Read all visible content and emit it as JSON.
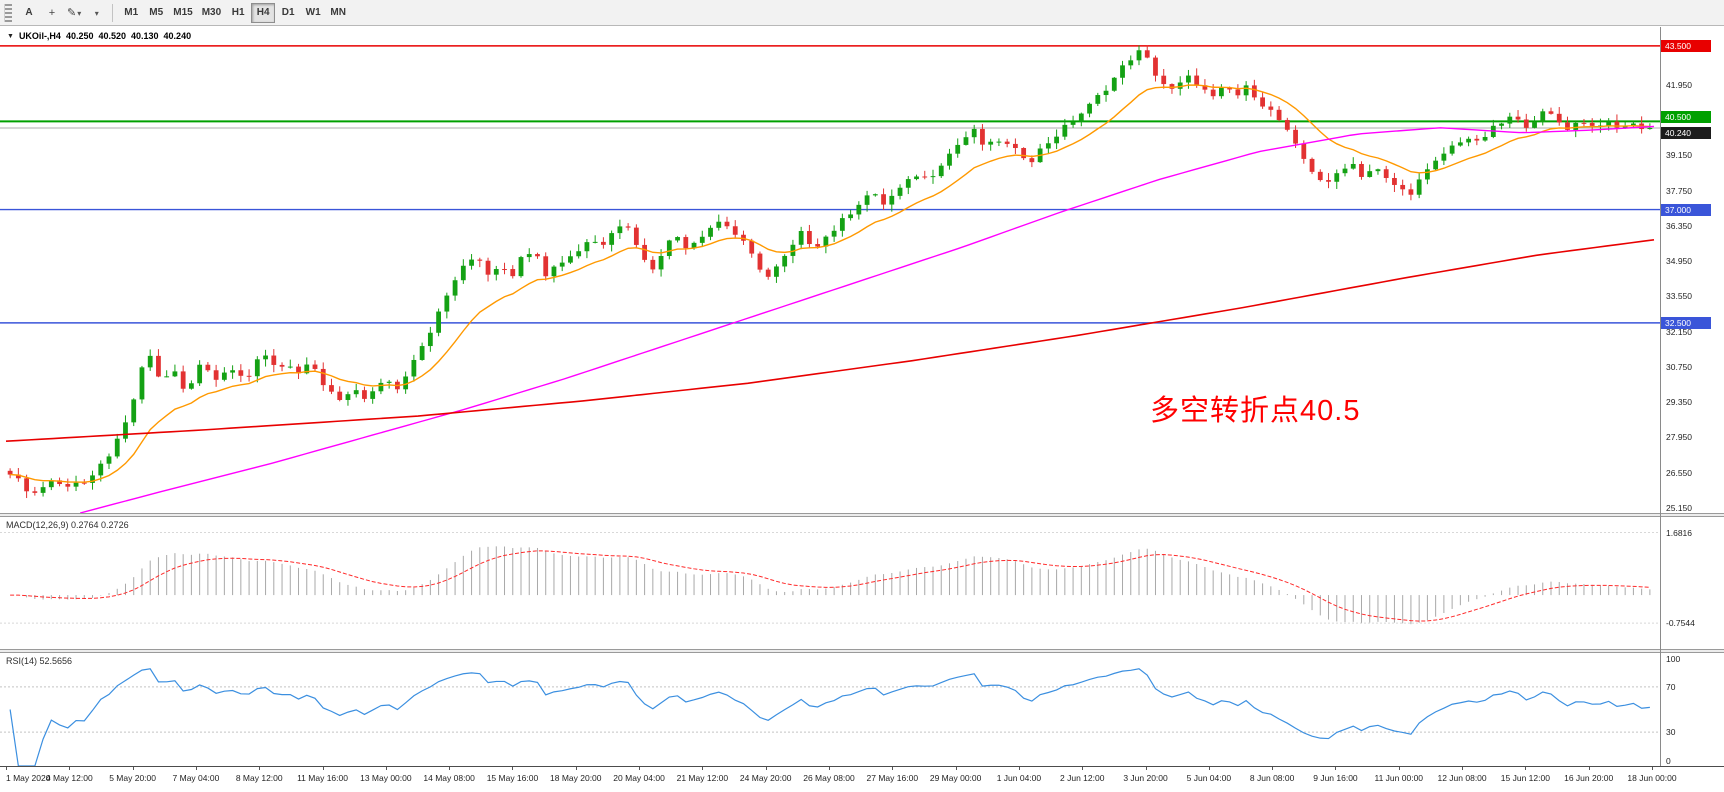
{
  "toolbar": {
    "text_tool_label": "A",
    "timeframes": [
      "M1",
      "M5",
      "M15",
      "M30",
      "H1",
      "H4",
      "D1",
      "W1",
      "MN"
    ],
    "active_timeframe": "H4"
  },
  "chart": {
    "symbol": "UKOil-,H4",
    "open": "40.250",
    "high": "40.520",
    "low": "40.130",
    "close": "40.240",
    "annotation": {
      "text": "多空转折点40.5",
      "color": "#ff0000"
    },
    "levels": [
      {
        "price": 43.5,
        "label": "43.500",
        "color": "#e80000"
      },
      {
        "price": 40.5,
        "label": "40.500",
        "color": "#00a000"
      },
      {
        "price": 37.0,
        "label": "37.000",
        "color": "#3a55d9"
      },
      {
        "price": 32.5,
        "label": "32.500",
        "color": "#3a55d9"
      }
    ],
    "current_price": {
      "price": 40.24,
      "label": "40.240",
      "color": "#1c1c1c"
    },
    "price_ticks": [
      "41.950",
      "39.150",
      "37.750",
      "36.350",
      "34.950",
      "33.550",
      "32.150",
      "30.750",
      "29.350",
      "27.950",
      "26.550",
      "25.150"
    ]
  },
  "macd": {
    "label": "MACD(12,26,9) 0.2764 0.2726",
    "axis_max": "1.6816",
    "axis_min": "-0.7544"
  },
  "rsi": {
    "label": "RSI(14) 52.5656",
    "period": 14,
    "axis_labels": [
      "100",
      "70",
      "30",
      "0"
    ],
    "levels": [
      70,
      30
    ]
  },
  "time_axis": [
    "1 May 2020",
    "4 May 12:00",
    "5 May 20:00",
    "7 May 04:00",
    "8 May 12:00",
    "11 May 16:00",
    "13 May 00:00",
    "14 May 08:00",
    "15 May 16:00",
    "18 May 20:00",
    "20 May 04:00",
    "21 May 12:00",
    "24 May 20:00",
    "26 May 08:00",
    "27 May 16:00",
    "29 May 00:00",
    "1 Jun 04:00",
    "2 Jun 12:00",
    "3 Jun 20:00",
    "5 Jun 04:00",
    "8 Jun 08:00",
    "9 Jun 16:00",
    "11 Jun 00:00",
    "12 Jun 08:00",
    "15 Jun 12:00",
    "16 Jun 20:00",
    "18 Jun 00:00"
  ],
  "chart_data": {
    "type": "candlestick",
    "symbol": "UKOil-",
    "timeframe": "H4",
    "price_view": {
      "max": 44.25,
      "min": 24.95
    },
    "num_candles": 200,
    "close_path": [
      [
        0.0,
        26.6
      ],
      [
        0.008,
        26.0
      ],
      [
        0.016,
        25.7
      ],
      [
        0.024,
        26.3
      ],
      [
        0.032,
        26.0
      ],
      [
        0.04,
        26.2
      ],
      [
        0.048,
        26.1
      ],
      [
        0.056,
        26.9
      ],
      [
        0.064,
        27.6
      ],
      [
        0.07,
        28.4
      ],
      [
        0.076,
        29.6
      ],
      [
        0.082,
        31.0
      ],
      [
        0.087,
        31.3
      ],
      [
        0.092,
        29.9
      ],
      [
        0.098,
        30.8
      ],
      [
        0.104,
        30.1
      ],
      [
        0.108,
        29.5
      ],
      [
        0.113,
        30.6
      ],
      [
        0.118,
        31.1
      ],
      [
        0.124,
        30.2
      ],
      [
        0.13,
        30.5
      ],
      [
        0.137,
        30.8
      ],
      [
        0.144,
        30.2
      ],
      [
        0.15,
        30.9
      ],
      [
        0.157,
        31.2
      ],
      [
        0.163,
        30.7
      ],
      [
        0.17,
        30.9
      ],
      [
        0.177,
        30.4
      ],
      [
        0.183,
        30.9
      ],
      [
        0.19,
        30.1
      ],
      [
        0.196,
        29.7
      ],
      [
        0.203,
        29.3
      ],
      [
        0.21,
        29.9
      ],
      [
        0.217,
        29.5
      ],
      [
        0.224,
        29.9
      ],
      [
        0.23,
        30.3
      ],
      [
        0.237,
        29.8
      ],
      [
        0.244,
        30.9
      ],
      [
        0.251,
        31.6
      ],
      [
        0.258,
        32.4
      ],
      [
        0.265,
        33.4
      ],
      [
        0.272,
        34.3
      ],
      [
        0.279,
        34.9
      ],
      [
        0.285,
        35.2
      ],
      [
        0.292,
        34.4
      ],
      [
        0.299,
        34.9
      ],
      [
        0.306,
        34.4
      ],
      [
        0.313,
        35.2
      ],
      [
        0.32,
        35.5
      ],
      [
        0.327,
        34.4
      ],
      [
        0.333,
        34.8
      ],
      [
        0.34,
        35.1
      ],
      [
        0.347,
        35.4
      ],
      [
        0.354,
        35.9
      ],
      [
        0.36,
        35.5
      ],
      [
        0.367,
        36.2
      ],
      [
        0.374,
        36.5
      ],
      [
        0.38,
        36.0
      ],
      [
        0.386,
        35.0
      ],
      [
        0.392,
        34.7
      ],
      [
        0.399,
        35.5
      ],
      [
        0.406,
        36.0
      ],
      [
        0.413,
        35.5
      ],
      [
        0.42,
        35.9
      ],
      [
        0.427,
        36.3
      ],
      [
        0.434,
        36.6
      ],
      [
        0.441,
        36.1
      ],
      [
        0.448,
        35.6
      ],
      [
        0.455,
        34.9
      ],
      [
        0.462,
        34.3
      ],
      [
        0.469,
        34.8
      ],
      [
        0.476,
        35.4
      ],
      [
        0.483,
        36.1
      ],
      [
        0.49,
        35.5
      ],
      [
        0.497,
        35.9
      ],
      [
        0.504,
        36.3
      ],
      [
        0.511,
        36.8
      ],
      [
        0.518,
        37.3
      ],
      [
        0.525,
        37.7
      ],
      [
        0.532,
        37.2
      ],
      [
        0.539,
        37.6
      ],
      [
        0.546,
        38.0
      ],
      [
        0.553,
        38.4
      ],
      [
        0.56,
        38.2
      ],
      [
        0.567,
        38.8
      ],
      [
        0.574,
        39.3
      ],
      [
        0.581,
        39.8
      ],
      [
        0.588,
        40.1
      ],
      [
        0.595,
        39.4
      ],
      [
        0.602,
        39.8
      ],
      [
        0.609,
        39.5
      ],
      [
        0.616,
        39.2
      ],
      [
        0.623,
        39.0
      ],
      [
        0.63,
        39.5
      ],
      [
        0.637,
        39.9
      ],
      [
        0.644,
        40.3
      ],
      [
        0.651,
        40.7
      ],
      [
        0.658,
        41.1
      ],
      [
        0.665,
        41.6
      ],
      [
        0.672,
        42.1
      ],
      [
        0.679,
        42.7
      ],
      [
        0.686,
        43.2
      ],
      [
        0.691,
        43.3
      ],
      [
        0.696,
        42.6
      ],
      [
        0.702,
        42.1
      ],
      [
        0.708,
        41.7
      ],
      [
        0.714,
        42.0
      ],
      [
        0.72,
        42.3
      ],
      [
        0.727,
        41.8
      ],
      [
        0.734,
        41.4
      ],
      [
        0.741,
        41.9
      ],
      [
        0.748,
        41.5
      ],
      [
        0.755,
        41.9
      ],
      [
        0.762,
        41.3
      ],
      [
        0.769,
        40.9
      ],
      [
        0.776,
        40.4
      ],
      [
        0.783,
        39.6
      ],
      [
        0.79,
        38.9
      ],
      [
        0.797,
        38.3
      ],
      [
        0.804,
        38.0
      ],
      [
        0.811,
        38.6
      ],
      [
        0.818,
        38.9
      ],
      [
        0.825,
        38.3
      ],
      [
        0.832,
        38.7
      ],
      [
        0.839,
        38.2
      ],
      [
        0.846,
        37.9
      ],
      [
        0.853,
        37.6
      ],
      [
        0.86,
        38.2
      ],
      [
        0.867,
        38.7
      ],
      [
        0.874,
        39.2
      ],
      [
        0.881,
        39.6
      ],
      [
        0.888,
        39.9
      ],
      [
        0.895,
        39.6
      ],
      [
        0.902,
        40.1
      ],
      [
        0.909,
        40.4
      ],
      [
        0.916,
        40.7
      ],
      [
        0.923,
        40.3
      ],
      [
        0.93,
        40.6
      ],
      [
        0.937,
        40.9
      ],
      [
        0.944,
        40.5
      ],
      [
        0.951,
        40.2
      ],
      [
        0.958,
        40.6
      ],
      [
        0.965,
        40.3
      ],
      [
        0.972,
        40.5
      ],
      [
        0.979,
        40.2
      ],
      [
        0.986,
        40.4
      ],
      [
        0.993,
        40.3
      ],
      [
        1.0,
        40.24
      ]
    ],
    "ma_fast_period": 13,
    "ma_mid_path": [
      [
        0.045,
        24.95
      ],
      [
        0.1,
        25.9
      ],
      [
        0.16,
        26.9
      ],
      [
        0.22,
        28.0
      ],
      [
        0.28,
        29.1
      ],
      [
        0.34,
        30.3
      ],
      [
        0.4,
        31.6
      ],
      [
        0.46,
        32.9
      ],
      [
        0.52,
        34.2
      ],
      [
        0.58,
        35.5
      ],
      [
        0.64,
        36.9
      ],
      [
        0.7,
        38.2
      ],
      [
        0.76,
        39.3
      ],
      [
        0.82,
        40.0
      ],
      [
        0.87,
        40.25
      ],
      [
        0.92,
        40.05
      ],
      [
        0.96,
        40.15
      ],
      [
        1.0,
        40.3
      ]
    ],
    "ma_slow_path": [
      [
        0.0,
        27.8
      ],
      [
        0.12,
        28.25
      ],
      [
        0.25,
        28.8
      ],
      [
        0.35,
        29.4
      ],
      [
        0.45,
        30.1
      ],
      [
        0.55,
        31.0
      ],
      [
        0.65,
        32.0
      ],
      [
        0.75,
        33.1
      ],
      [
        0.85,
        34.3
      ],
      [
        0.93,
        35.2
      ],
      [
        1.0,
        35.8
      ]
    ],
    "colors": {
      "up": "#14a114",
      "down": "#e23232",
      "ma_fast": "#ff9900",
      "ma_mid": "#ff00ff",
      "ma_slow": "#e80000",
      "macd_hist": "#a8a8a8",
      "macd_signal": "#ff2a2a",
      "rsi": "#3b8fe0"
    }
  }
}
